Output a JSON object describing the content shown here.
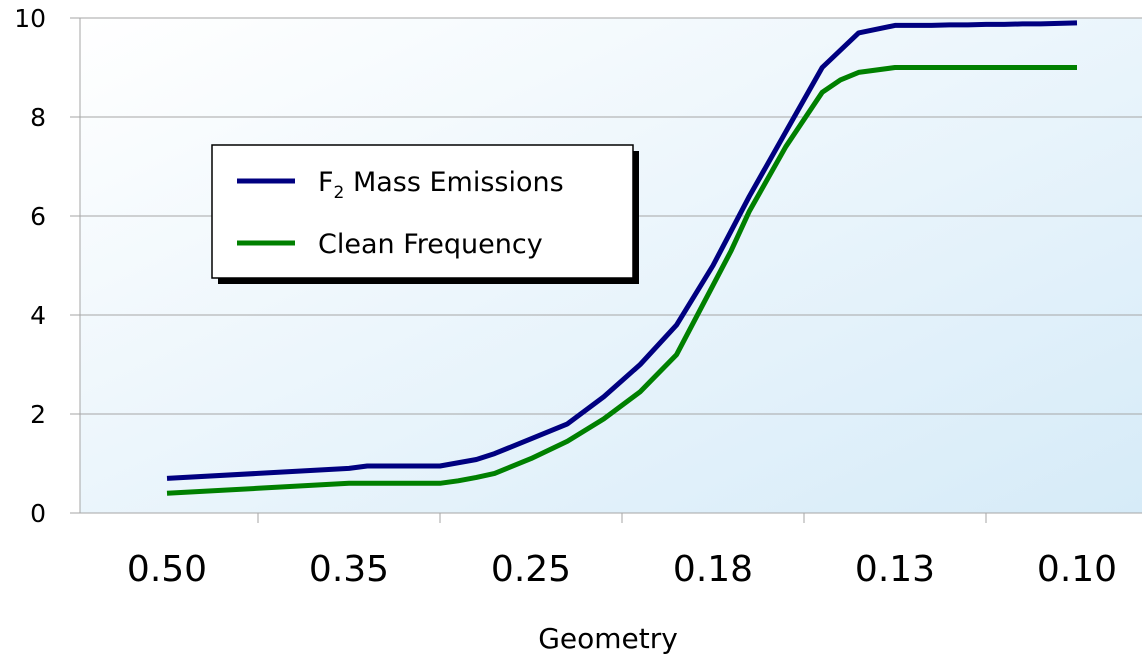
{
  "chart_data": {
    "type": "line",
    "xlabel": "Geometry",
    "ylabel": "",
    "ylim": [
      0,
      10
    ],
    "yticks": [
      "0",
      "2",
      "4",
      "6",
      "8",
      "10"
    ],
    "categories": [
      "0.50",
      "0.35",
      "0.25",
      "0.18",
      "0.13",
      "0.10"
    ],
    "grid": true,
    "legend_position": "upper-left",
    "series": [
      {
        "name": "F2 Mass Emissions",
        "legend_main": "F",
        "legend_sub": "2",
        "legend_rest": " Mass Emissions",
        "color": "#000080",
        "x": [
          0.0,
          0.5,
          1.0,
          1.1,
          1.5,
          1.7,
          1.8,
          2.0,
          2.2,
          2.4,
          2.6,
          2.8,
          3.0,
          3.1,
          3.2,
          3.4,
          3.6,
          3.8,
          4.0,
          4.1,
          4.2,
          4.3,
          4.4,
          4.5,
          4.6,
          4.7,
          4.8,
          4.9,
          5.0
        ],
        "values": [
          0.7,
          0.8,
          0.9,
          0.95,
          0.95,
          1.08,
          1.2,
          1.5,
          1.8,
          2.35,
          3.0,
          3.8,
          5.0,
          5.7,
          6.4,
          7.7,
          9.0,
          9.7,
          9.85,
          9.85,
          9.85,
          9.86,
          9.86,
          9.87,
          9.87,
          9.88,
          9.88,
          9.89,
          9.9
        ]
      },
      {
        "name": "Clean Frequency",
        "color": "#008000",
        "x": [
          0.0,
          0.5,
          1.0,
          1.1,
          1.5,
          1.6,
          1.7,
          1.8,
          2.0,
          2.2,
          2.4,
          2.6,
          2.8,
          3.0,
          3.1,
          3.2,
          3.4,
          3.6,
          3.7,
          3.8,
          4.0,
          4.2,
          4.4,
          4.6,
          4.8,
          5.0
        ],
        "values": [
          0.4,
          0.5,
          0.6,
          0.6,
          0.6,
          0.65,
          0.72,
          0.8,
          1.1,
          1.45,
          1.9,
          2.45,
          3.2,
          4.6,
          5.3,
          6.1,
          7.4,
          8.5,
          8.75,
          8.9,
          9.0,
          9.0,
          9.0,
          9.0,
          9.0,
          9.0
        ]
      }
    ]
  }
}
